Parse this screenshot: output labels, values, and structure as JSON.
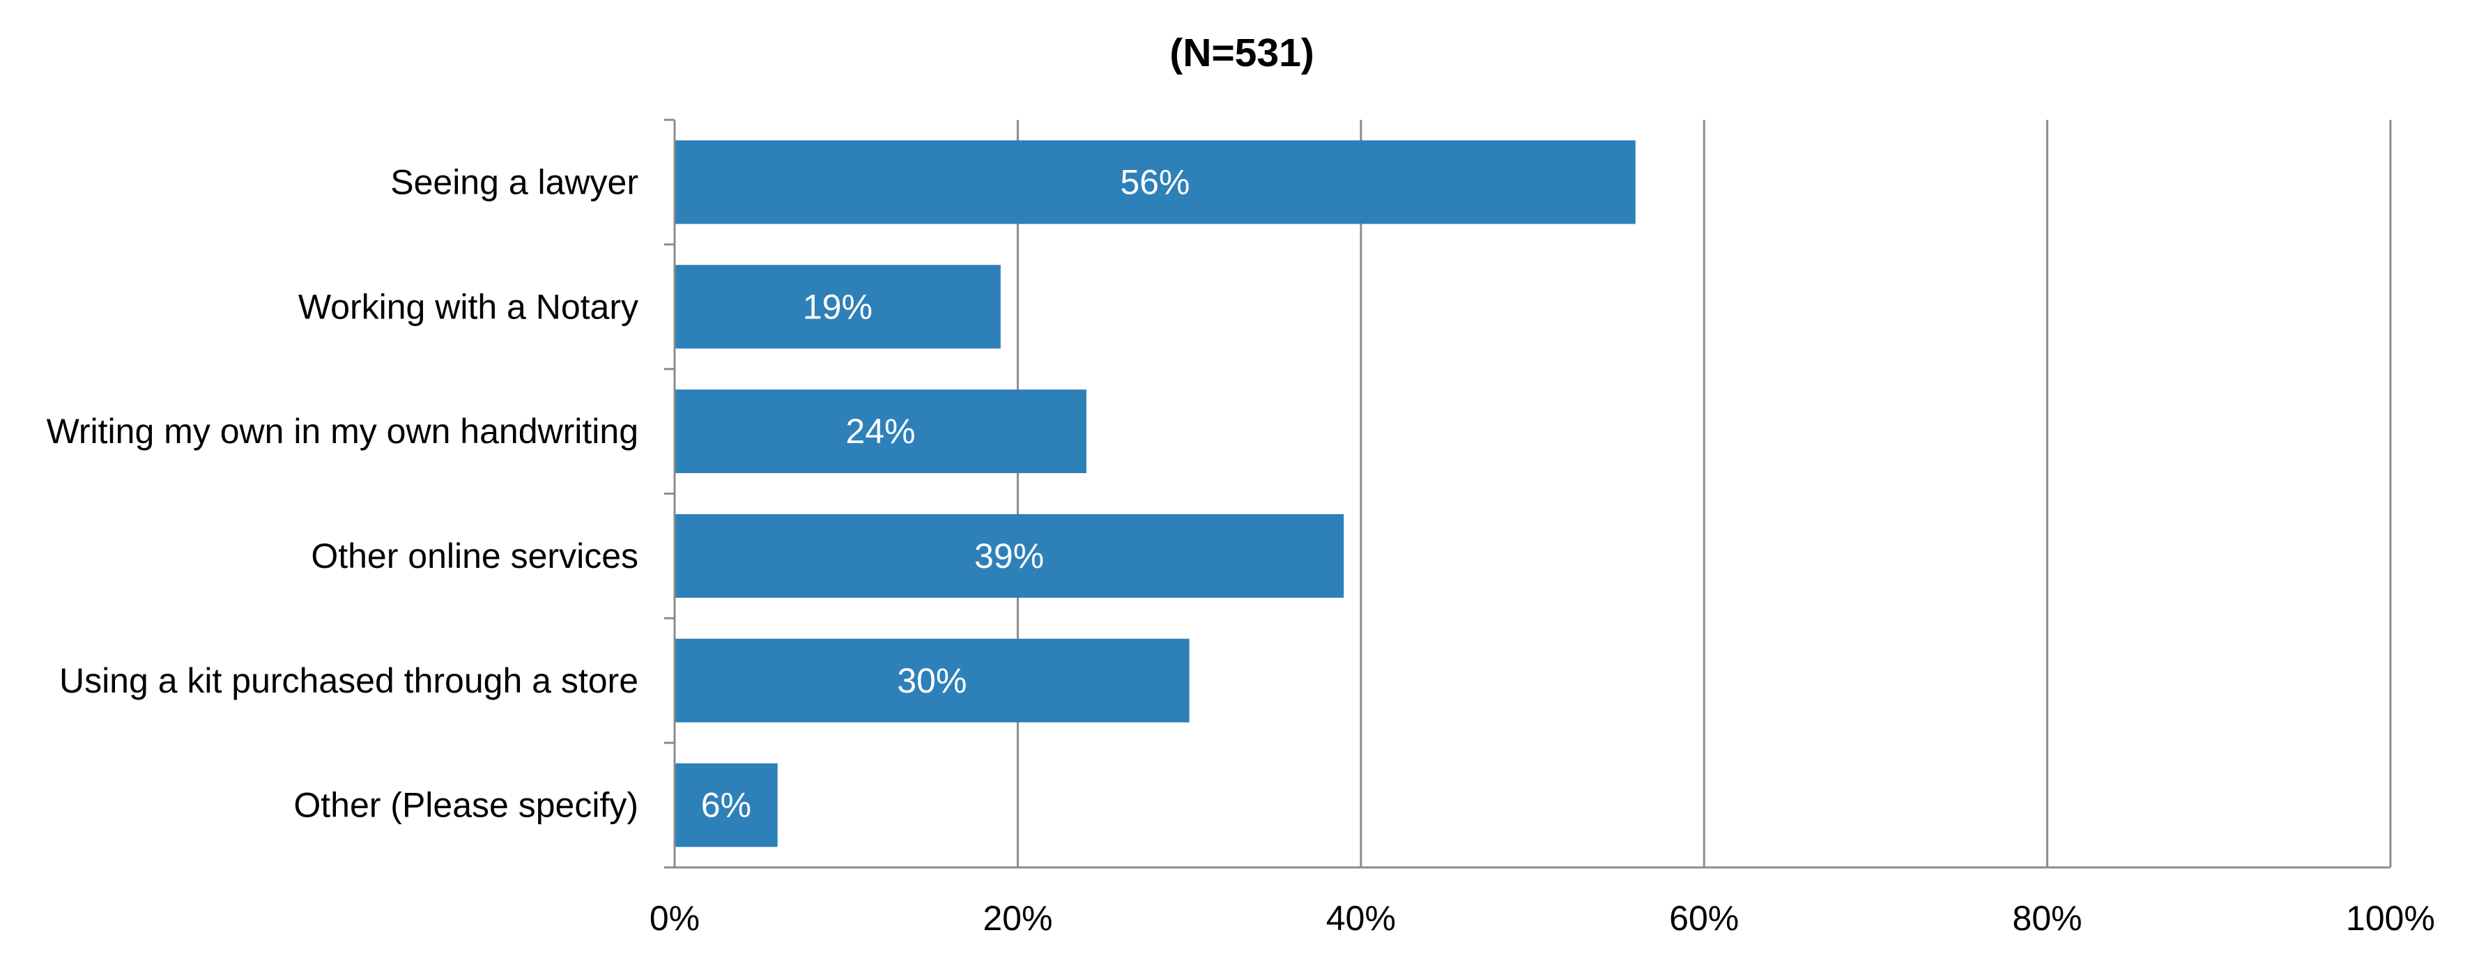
{
  "chart_data": {
    "type": "bar",
    "orientation": "horizontal",
    "title": "(N=531)",
    "categories": [
      "Seeing a lawyer",
      "Working with a Notary",
      "Writing my own in my own handwriting",
      "Other online services",
      "Using a kit purchased through a store",
      "Other (Please specify)"
    ],
    "values": [
      56,
      19,
      24,
      39,
      30,
      6
    ],
    "data_labels": [
      "56%",
      "19%",
      "24%",
      "39%",
      "30%",
      "6%"
    ],
    "xlim": [
      0,
      100
    ],
    "x_ticks": [
      0,
      20,
      40,
      60,
      80,
      100
    ],
    "x_tick_labels": [
      "0%",
      "20%",
      "40%",
      "60%",
      "80%",
      "100%"
    ],
    "xlabel": "",
    "ylabel": "",
    "grid": "vertical",
    "legend": "none",
    "colors": {
      "bar": "#2e80b8",
      "gridline": "#8c8c8c",
      "axis": "#8c8c8c",
      "data_label": "#ffffff",
      "text": "#000000"
    }
  }
}
